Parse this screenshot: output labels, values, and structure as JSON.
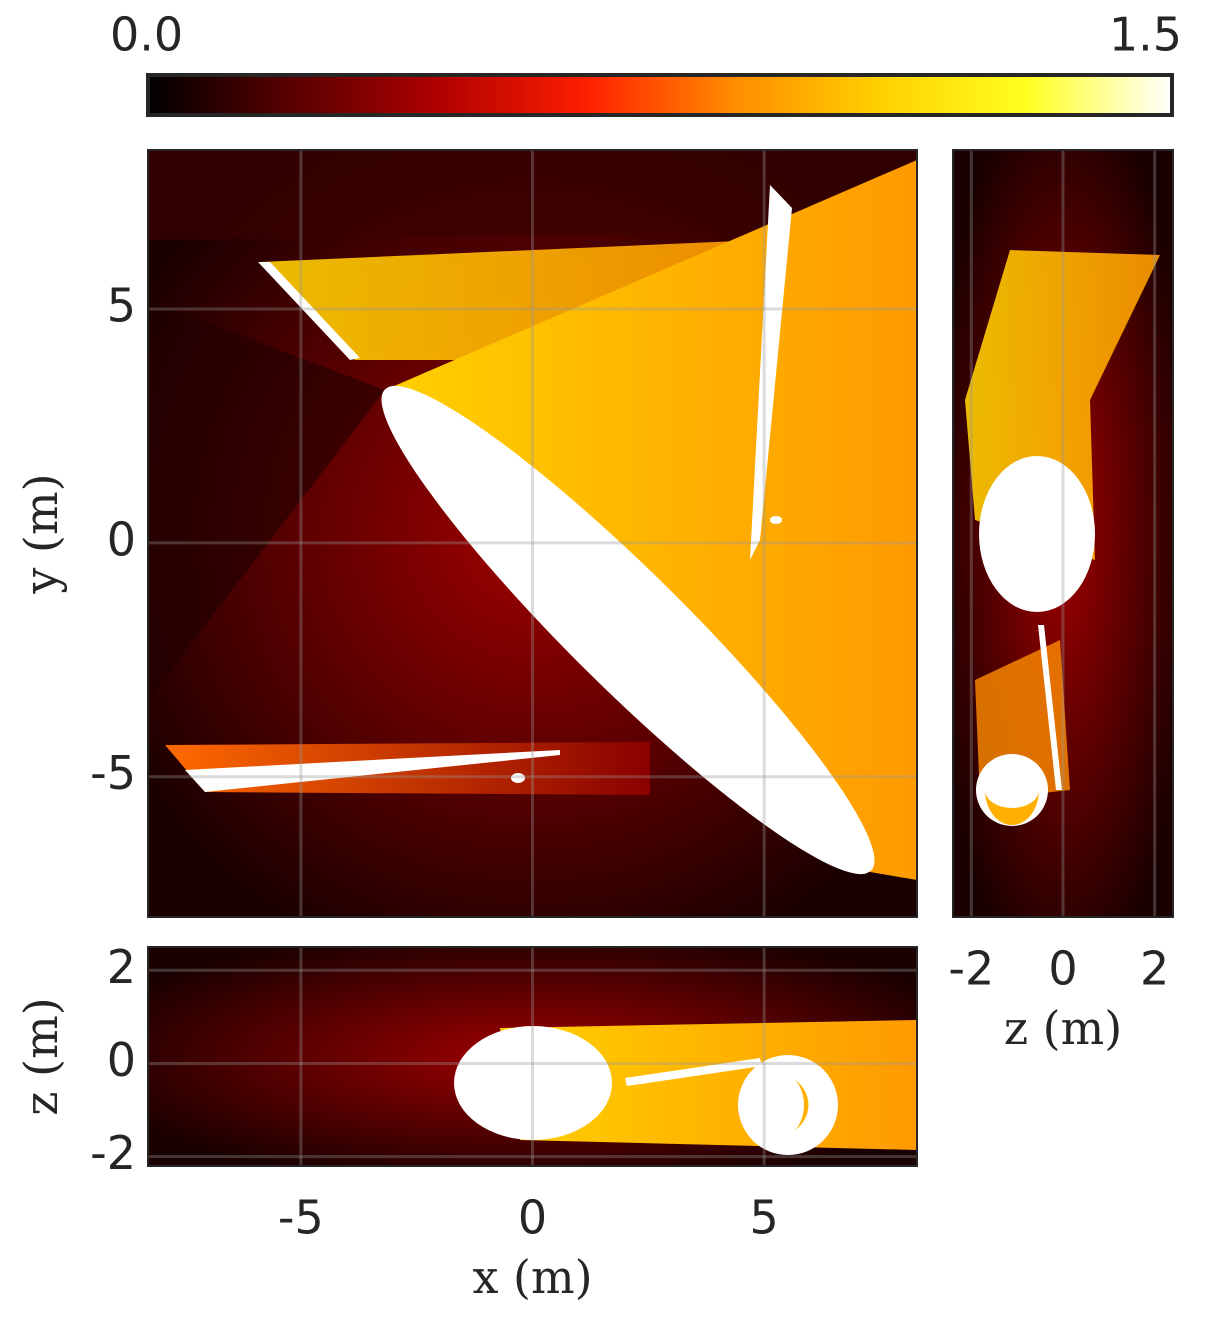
{
  "chart_data": [
    {
      "type": "heatmap",
      "ylabel": "y (m)",
      "xlim": [
        -8.3,
        8.3
      ],
      "ylim": [
        -8,
        8.4
      ],
      "xticks": [
        -5,
        0,
        5
      ],
      "yticks": [
        -5,
        0,
        5
      ],
      "grid": true,
      "colorbar": {
        "clim": [
          0,
          1.5
        ],
        "cticks": [
          {
            "value": 0,
            "label": "0.0"
          },
          {
            "value": 1.5,
            "label": "1.5"
          }
        ],
        "colormap": [
          "#000000",
          "#5a0000",
          "#b00000",
          "#ff2000",
          "#ff8c00",
          "#ffd000",
          "#ffff20",
          "#ffffff"
        ]
      }
    },
    {
      "type": "heatmap",
      "xlabel": "z (m)",
      "xlim": [
        -2.4,
        2.4
      ],
      "ylim": [
        -8,
        8.4
      ],
      "xticks": [
        -2,
        0,
        2
      ],
      "grid": true
    },
    {
      "type": "heatmap",
      "xlabel": "x (m)",
      "ylabel": "z (m)",
      "xlim": [
        -8.3,
        8.3
      ],
      "ylim": [
        -2.2,
        2.5
      ],
      "xticks": [
        -5,
        0,
        5
      ],
      "yticks": [
        -2,
        0,
        2
      ],
      "grid": true
    }
  ]
}
